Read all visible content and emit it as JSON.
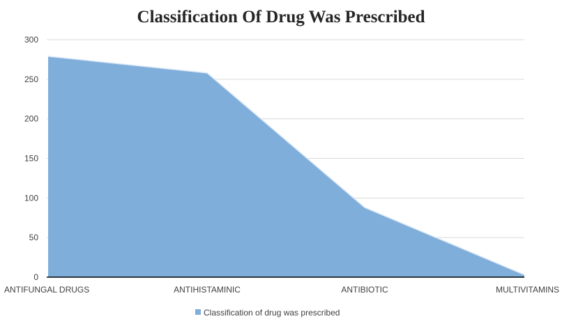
{
  "chart_data": {
    "type": "area",
    "title": "Classification Of Drug Was Prescribed",
    "categories": [
      "ANTIFUNGAL DRUGS",
      "ANTIHISTAMINIC",
      "ANTIBIOTIC",
      "MULTIVITAMINS"
    ],
    "series": [
      {
        "name": "Classification of drug was prescribed",
        "values": [
          279,
          258,
          88,
          3
        ],
        "color": "#7FAEDB"
      }
    ],
    "yticks": [
      "0",
      "50",
      "100",
      "150",
      "200",
      "250",
      "300"
    ],
    "ylim": [
      0,
      300
    ],
    "xlabel": "",
    "ylabel": "",
    "grid": true,
    "legend_position": "bottom"
  }
}
